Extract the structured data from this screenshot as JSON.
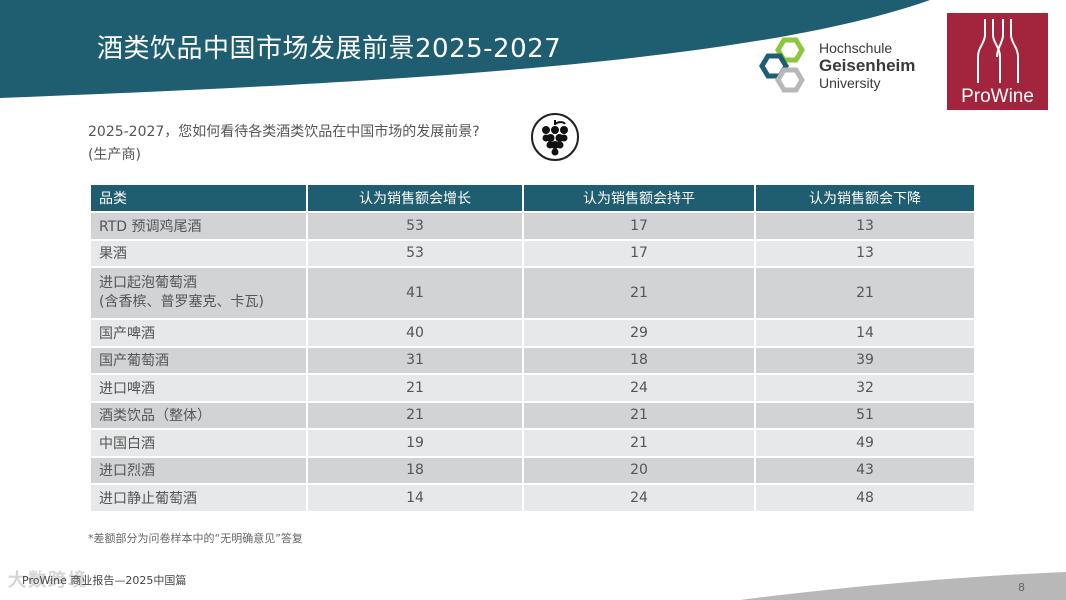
{
  "title": "酒类饮品中国市场发展前景2025-2027",
  "logos": {
    "university": {
      "line1": "Hochschule",
      "line2": "Geisenheim",
      "line3": "University"
    },
    "prowine": "ProWine"
  },
  "question": {
    "line1": "2025-2027，您如何看待各类酒类饮品在中国市场的发展前景?",
    "line2": "(生产商)"
  },
  "table": {
    "headers": [
      "品类",
      "认为销售额会增长",
      "认为销售额会持平",
      "认为销售额会下降"
    ],
    "rows": [
      {
        "category": "RTD 预调鸡尾酒",
        "grow": "53",
        "flat": "17",
        "decline": "13"
      },
      {
        "category": "果酒",
        "grow": "53",
        "flat": "17",
        "decline": "13"
      },
      {
        "category": "进口起泡葡萄酒",
        "category2": "(含香槟、普罗塞克、卡瓦)",
        "grow": "41",
        "flat": "21",
        "decline": "21"
      },
      {
        "category": "国产啤酒",
        "grow": "40",
        "flat": "29",
        "decline": "14"
      },
      {
        "category": "国产葡萄酒",
        "grow": "31",
        "flat": "18",
        "decline": "39"
      },
      {
        "category": "进口啤酒",
        "grow": "21",
        "flat": "24",
        "decline": "32"
      },
      {
        "category": "酒类饮品（整体）",
        "grow": "21",
        "flat": "21",
        "decline": "51"
      },
      {
        "category": "中国白酒",
        "grow": "19",
        "flat": "21",
        "decline": "49"
      },
      {
        "category": "进口烈酒",
        "grow": "18",
        "flat": "20",
        "decline": "43"
      },
      {
        "category": "进口静止葡萄酒",
        "grow": "14",
        "flat": "24",
        "decline": "48"
      }
    ]
  },
  "footnote": "*差额部分为问卷样本中的“无明确意见”答复",
  "footer": {
    "source": "ProWine 商业报告—2025中国篇",
    "watermark": "大数跨境",
    "page": "8"
  },
  "colors": {
    "header_band": "#1f5d70",
    "table_header": "#1f5d70",
    "row_dark": "#d1d3d4",
    "row_light": "#e7e8e9",
    "prowine_red": "#a3243d",
    "hgu_green": "#8dc63f"
  },
  "icons": [
    "grape-bunch-icon",
    "hexagon-logo-icon",
    "wine-bottles-icon"
  ]
}
